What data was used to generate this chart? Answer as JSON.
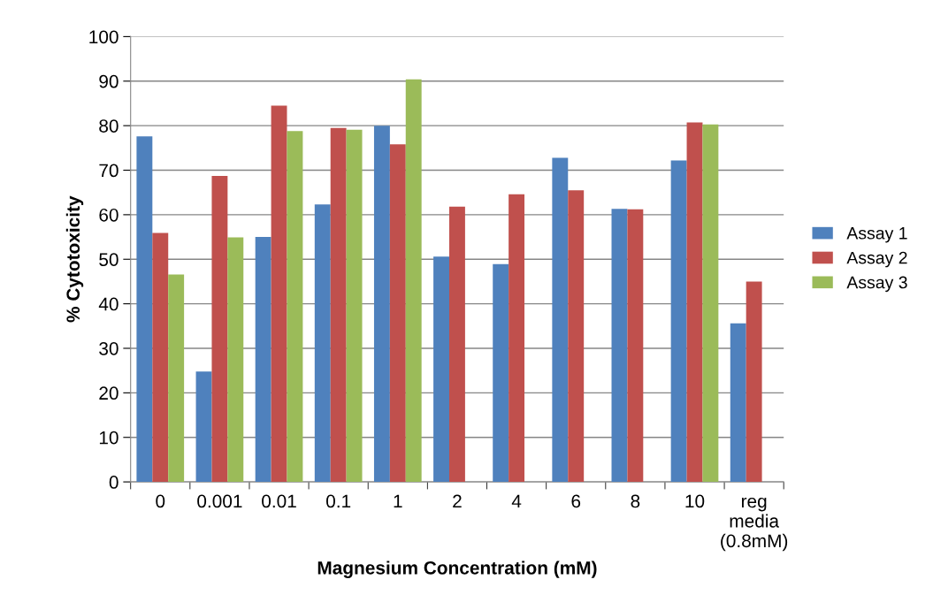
{
  "chart_data": {
    "type": "bar",
    "xlabel": "Magnesium Concentration (mM)",
    "ylabel": "% Cytotoxicity",
    "categories": [
      "0",
      "0.001",
      "0.01",
      "0.1",
      "1",
      "2",
      "4",
      "6",
      "8",
      "10",
      "reg\nmedia\n(0.8mM)"
    ],
    "series": [
      {
        "name": "Assay 1",
        "color": "#4f81bd",
        "values": [
          77.6,
          24.8,
          55.0,
          62.3,
          80.0,
          50.6,
          48.9,
          72.8,
          61.3,
          72.2,
          35.6
        ]
      },
      {
        "name": "Assay 2",
        "color": "#c0504d",
        "values": [
          55.9,
          68.7,
          84.5,
          79.5,
          75.8,
          61.8,
          64.6,
          65.5,
          61.2,
          80.7,
          45.0
        ]
      },
      {
        "name": "Assay 3",
        "color": "#9bbb59",
        "values": [
          46.6,
          54.9,
          78.8,
          79.1,
          90.4,
          null,
          null,
          null,
          null,
          80.3,
          null
        ]
      }
    ],
    "ylim": [
      0,
      100
    ],
    "yticks": [
      0,
      10,
      20,
      30,
      40,
      50,
      60,
      70,
      80,
      90,
      100
    ],
    "grid": "y",
    "legend": "right"
  }
}
